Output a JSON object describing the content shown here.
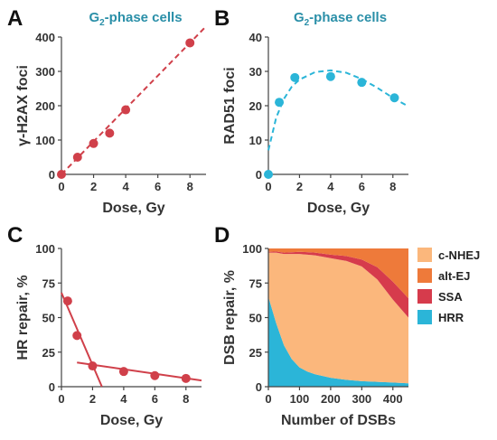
{
  "chart_data": [
    {
      "panel": "A",
      "type": "scatter",
      "title": "G",
      "title_sub": "2",
      "title_rest": "-phase cells",
      "xlabel": "Dose, Gy",
      "ylabel": "γ-H2AX foci",
      "xlim": [
        0,
        9
      ],
      "ylim": [
        0,
        400
      ],
      "xticks": [
        0,
        2,
        4,
        6,
        8
      ],
      "yticks": [
        0,
        100,
        200,
        300,
        400
      ],
      "points": [
        [
          0,
          0
        ],
        [
          1,
          50
        ],
        [
          2,
          90
        ],
        [
          3,
          120
        ],
        [
          4,
          188
        ],
        [
          8,
          383
        ]
      ],
      "fit": {
        "style": "dashed",
        "from": [
          0,
          0
        ],
        "to": [
          9,
          431
        ]
      },
      "color": "#d0404a"
    },
    {
      "panel": "B",
      "type": "scatter",
      "title": "G",
      "title_sub": "2",
      "title_rest": "-phase cells",
      "xlabel": "Dose, Gy",
      "ylabel": "RAD51 foci",
      "xlim": [
        0,
        9
      ],
      "ylim": [
        0,
        40
      ],
      "xticks": [
        0,
        2,
        4,
        6,
        8
      ],
      "yticks": [
        0,
        10,
        20,
        30,
        40
      ],
      "points": [
        [
          0,
          0
        ],
        [
          0.7,
          21
        ],
        [
          1.7,
          28.2
        ],
        [
          4,
          28.5
        ],
        [
          6,
          26.8
        ],
        [
          8.1,
          22.3
        ]
      ],
      "fit": {
        "style": "dashed",
        "points": [
          [
            0,
            7
          ],
          [
            0.5,
            16.5
          ],
          [
            1,
            22
          ],
          [
            1.5,
            25.5
          ],
          [
            2,
            27.6
          ],
          [
            3,
            29.8
          ],
          [
            4,
            30.3
          ],
          [
            5,
            29.6
          ],
          [
            6,
            27.8
          ],
          [
            7,
            25.2
          ],
          [
            8,
            22.3
          ],
          [
            9,
            19.8
          ]
        ]
      },
      "color": "#2bb5d8"
    },
    {
      "panel": "C",
      "type": "line",
      "xlabel": "Dose, Gy",
      "ylabel": "HR repair, %",
      "xlim": [
        0,
        9
      ],
      "ylim": [
        0,
        100
      ],
      "xticks": [
        0,
        2,
        4,
        6,
        8
      ],
      "yticks": [
        0,
        25,
        50,
        75,
        100
      ],
      "points": [
        [
          0.4,
          62
        ],
        [
          1,
          37
        ],
        [
          2,
          15
        ],
        [
          4,
          11
        ],
        [
          6,
          8
        ],
        [
          8,
          6
        ]
      ],
      "fit_lines": [
        {
          "from": [
            0,
            68
          ],
          "to": [
            2.6,
            0
          ]
        },
        {
          "from": [
            1,
            17.5
          ],
          "to": [
            9,
            4.5
          ]
        }
      ],
      "color": "#d0404a"
    },
    {
      "panel": "D",
      "type": "area",
      "xlabel": "Number of DSBs",
      "ylabel": "DSB repair, %",
      "xlim": [
        0,
        450
      ],
      "ylim": [
        0,
        100
      ],
      "xticks": [
        0,
        100,
        200,
        300,
        400
      ],
      "yticks": [
        0,
        25,
        50,
        75,
        100
      ],
      "x": [
        0,
        25,
        50,
        75,
        100,
        125,
        150,
        200,
        250,
        300,
        350,
        400,
        450
      ],
      "series": [
        {
          "name": "HRR",
          "color": "#2bb5d8",
          "values": [
            65,
            46,
            30,
            20,
            14,
            11,
            9,
            6.5,
            5,
            4,
            3.5,
            3,
            2.5
          ]
        },
        {
          "name": "c-NHEJ",
          "color": "#fbb77c",
          "values": [
            32,
            51,
            66,
            76,
            82,
            84.5,
            86,
            86.5,
            86,
            83,
            74,
            60,
            47.5
          ]
        },
        {
          "name": "SSA",
          "color": "#d63b4c",
          "values": [
            0.5,
            0.8,
            1,
            1.2,
            1.5,
            1.8,
            2,
            2.5,
            3.5,
            5,
            9,
            13,
            14
          ]
        },
        {
          "name": "alt-EJ",
          "color": "#ee7a3a",
          "values": [
            2.5,
            2.2,
            3,
            2.8,
            2.5,
            2.7,
            3,
            4.5,
            5.5,
            8,
            13.5,
            24,
            36
          ]
        }
      ],
      "legend_order": [
        "c-NHEJ",
        "alt-EJ",
        "SSA",
        "HRR"
      ]
    }
  ]
}
